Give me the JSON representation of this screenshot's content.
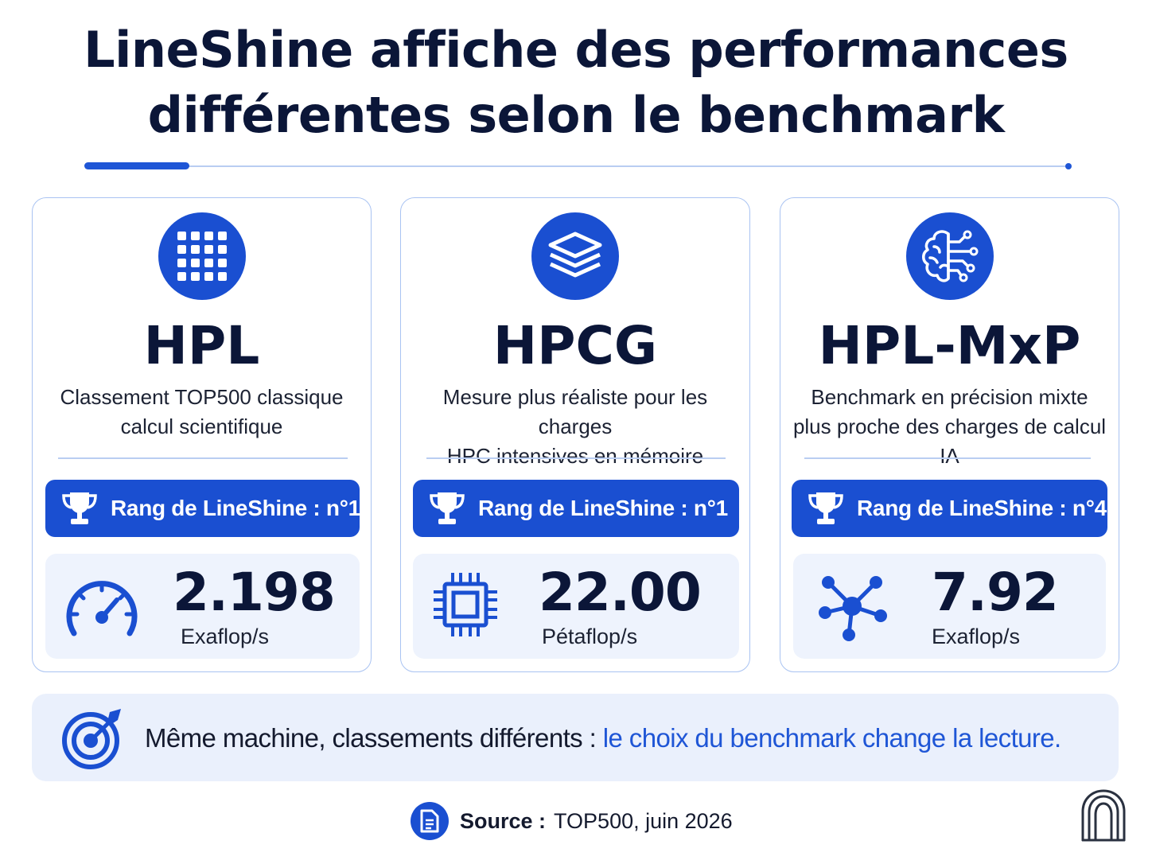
{
  "title": {
    "line1": "LineShine affiche des performances",
    "line2": "différentes selon le benchmark"
  },
  "cards": [
    {
      "benchmark": "HPL",
      "icon": "grid-icon",
      "description_line1": "Classement TOP500 classique",
      "description_line2": "calcul scientifique",
      "rank_label": "Rang de LineShine : n°1",
      "value": "2.198",
      "unit": "Exaflop/s",
      "metric_icon": "speedometer-icon"
    },
    {
      "benchmark": "HPCG",
      "icon": "layers-icon",
      "description_line1": "Mesure plus réaliste pour les charges",
      "description_line2": "HPC intensives en mémoire",
      "rank_label": "Rang de LineShine : n°1",
      "value": "22.00",
      "unit": "Pétaflop/s",
      "metric_icon": "chip-icon"
    },
    {
      "benchmark": "HPL-MxP",
      "icon": "brain-circuit-icon",
      "description_line1": "Benchmark en précision mixte",
      "description_line2": "plus proche des charges de calcul IA",
      "rank_label": "Rang de LineShine : n°4",
      "value": "7.92",
      "unit": "Exaflop/s",
      "metric_icon": "network-icon"
    }
  ],
  "banner": {
    "text_dark": "Même machine, classements différents : ",
    "text_blue": "le choix du benchmark change la lecture.",
    "icon": "target-icon"
  },
  "source": {
    "label": "Source :",
    "value": "TOP500, juin 2026",
    "icon": "document-icon"
  },
  "colors": {
    "accent": "#1a4fd1",
    "text": "#0b1638",
    "panel": "#eef3fd",
    "border": "#a9c3f2"
  }
}
